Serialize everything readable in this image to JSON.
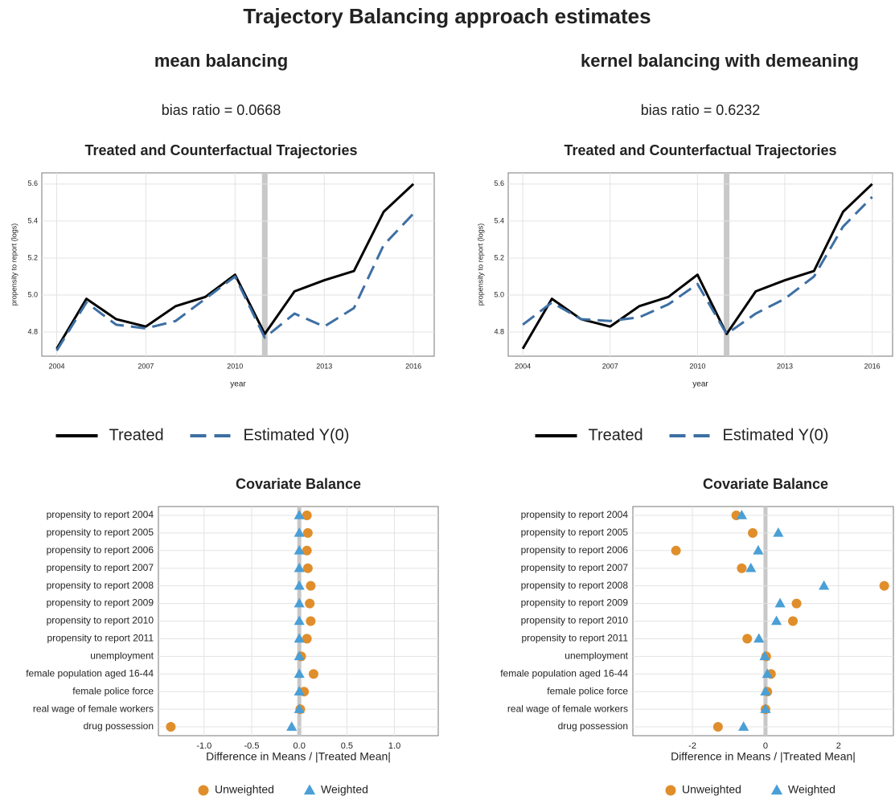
{
  "title": "Trajectory Balancing approach estimates",
  "chart_data": [
    {
      "type": "line",
      "heading": "mean balancing",
      "subtitle": "bias ratio = 0.0668",
      "title": "Treated and Counterfactual Trajectories",
      "xlabel": "year",
      "ylabel": "propensity to report (logs)",
      "x": [
        2004,
        2005,
        2006,
        2007,
        2008,
        2009,
        2010,
        2011,
        2012,
        2013,
        2014,
        2015,
        2016
      ],
      "series": [
        {
          "name": "Treated",
          "color": "#000000",
          "linestyle": "solid",
          "values": [
            4.71,
            4.98,
            4.87,
            4.83,
            4.94,
            4.99,
            5.11,
            4.79,
            5.02,
            5.08,
            5.13,
            5.45,
            5.6
          ]
        },
        {
          "name": "Estimated Y(0)",
          "color": "#3d6fa3",
          "linestyle": "dashed",
          "values": [
            4.7,
            4.96,
            4.84,
            4.82,
            4.86,
            4.98,
            5.1,
            4.77,
            4.9,
            4.83,
            4.93,
            5.27,
            5.44
          ]
        }
      ],
      "xlim": [
        2003.5,
        2016.7
      ],
      "xticks": [
        2004,
        2007,
        2010,
        2013,
        2016
      ],
      "ylim": [
        4.67,
        5.66
      ],
      "yticks": [
        4.8,
        {
          "value": 5,
          "label": "5.0"
        },
        5.2,
        5.4,
        5.6
      ],
      "vline": 2011,
      "grid": true,
      "legend": "bottom"
    },
    {
      "type": "line",
      "heading": "kernel balancing with demeaning",
      "subtitle": "bias ratio = 0.6232",
      "title": "Treated and Counterfactual Trajectories",
      "xlabel": "year",
      "ylabel": "propensity to report (logs)",
      "x": [
        2004,
        2005,
        2006,
        2007,
        2008,
        2009,
        2010,
        2011,
        2012,
        2013,
        2014,
        2015,
        2016
      ],
      "series": [
        {
          "name": "Treated",
          "color": "#000000",
          "linestyle": "solid",
          "values": [
            4.71,
            4.98,
            4.87,
            4.83,
            4.94,
            4.99,
            5.11,
            4.79,
            5.02,
            5.08,
            5.13,
            5.45,
            5.6
          ]
        },
        {
          "name": "Estimated Y(0)",
          "color": "#3d6fa3",
          "linestyle": "dashed",
          "values": [
            4.84,
            4.96,
            4.87,
            4.86,
            4.88,
            4.95,
            5.06,
            4.79,
            4.9,
            4.98,
            5.1,
            5.37,
            5.53
          ]
        }
      ],
      "xlim": [
        2003.5,
        2016.7
      ],
      "xticks": [
        2004,
        2007,
        2010,
        2013,
        2016
      ],
      "ylim": [
        4.67,
        5.66
      ],
      "yticks": [
        4.8,
        {
          "value": 5,
          "label": "5.0"
        },
        5.2,
        5.4,
        5.6
      ],
      "vline": 2011,
      "grid": true,
      "legend": "bottom"
    },
    {
      "type": "dot",
      "title": "Covariate Balance",
      "xlabel": "Difference in Means / |Treated Mean|",
      "categories": [
        "propensity to report 2004",
        "propensity to report 2005",
        "propensity to report 2006",
        "propensity to report 2007",
        "propensity to report 2008",
        "propensity to report 2009",
        "propensity to report 2010",
        "propensity to report 2011",
        "unemployment",
        "female population aged 16-44",
        "female police force",
        "real wage of female workers",
        "drug possession"
      ],
      "series": [
        {
          "name": "Unweighted",
          "color": "#e08e2b",
          "marker": "circle",
          "values": [
            0.08,
            0.09,
            0.08,
            0.09,
            0.12,
            0.11,
            0.12,
            0.08,
            0.02,
            0.15,
            0.05,
            0.01,
            -1.35
          ]
        },
        {
          "name": "Weighted",
          "color": "#4a9fd6",
          "marker": "triangle",
          "values": [
            0,
            0,
            0,
            0,
            0,
            0,
            0,
            0,
            0,
            0,
            0,
            0,
            -0.08
          ]
        }
      ],
      "xlim": [
        -1.48,
        1.46
      ],
      "xticks": [
        {
          "value": -1,
          "label": "-1.0"
        },
        -0.5,
        {
          "value": 0,
          "label": "0.0"
        },
        0.5,
        {
          "value": 1,
          "label": "1.0"
        }
      ],
      "vline": 0,
      "grid": true,
      "legend": "bottom"
    },
    {
      "type": "dot",
      "title": "Covariate Balance",
      "xlabel": "Difference in Means / |Treated Mean|",
      "categories": [
        "propensity to report 2004",
        "propensity to report 2005",
        "propensity to report 2006",
        "propensity to report 2007",
        "propensity to report 2008",
        "propensity to report 2009",
        "propensity to report 2010",
        "propensity to report 2011",
        "unemployment",
        "female population aged 16-44",
        "female police force",
        "real wage of female workers",
        "drug possession"
      ],
      "series": [
        {
          "name": "Unweighted",
          "color": "#e08e2b",
          "marker": "circle",
          "values": [
            -0.8,
            -0.35,
            -2.45,
            -0.65,
            3.25,
            0.85,
            0.75,
            -0.5,
            0.02,
            0.15,
            0.05,
            0,
            -1.3
          ]
        },
        {
          "name": "Weighted",
          "color": "#4a9fd6",
          "marker": "triangle",
          "values": [
            -0.65,
            0.35,
            -0.2,
            -0.4,
            1.6,
            0.4,
            0.3,
            -0.18,
            -0.02,
            0.05,
            0,
            0,
            -0.6
          ]
        }
      ],
      "xlim": [
        -3.63,
        3.5
      ],
      "xticks": [
        -2,
        0,
        2
      ],
      "vline": 0,
      "grid": true,
      "legend": "bottom"
    }
  ]
}
